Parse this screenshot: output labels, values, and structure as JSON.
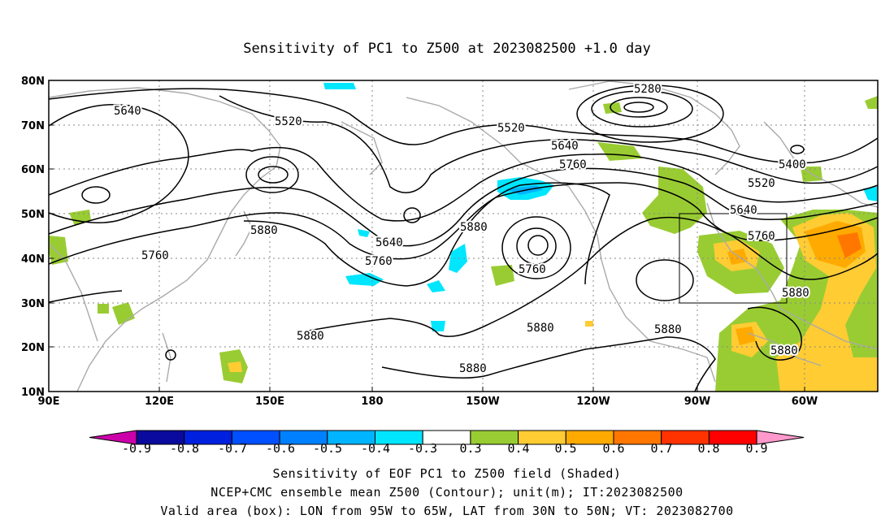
{
  "title": "Sensitivity of PC1 to Z500 at 2023082500 +1.0 day",
  "lat_labels": [
    "80N",
    "70N",
    "60N",
    "50N",
    "40N",
    "30N",
    "20N",
    "10N"
  ],
  "lon_labels": [
    "90E",
    "120E",
    "150E",
    "180",
    "150W",
    "120W",
    "90W",
    "60W"
  ],
  "contour_labels": [
    "5640",
    "5520",
    "5520",
    "5280",
    "5640",
    "5760",
    "5400",
    "5520",
    "5640",
    "5760",
    "5880",
    "5640",
    "5760",
    "5760",
    "5880",
    "5760",
    "5880",
    "5880",
    "5880",
    "5880",
    "5880"
  ],
  "colorbar_labels": [
    "-0.9",
    "-0.8",
    "-0.7",
    "-0.6",
    "-0.5",
    "-0.4",
    "-0.3",
    "0.3",
    "0.4",
    "0.5",
    "0.6",
    "0.7",
    "0.8",
    "0.9"
  ],
  "colors": {
    "neg_end": "#cc00aa",
    "neg": [
      "#0a0a9c",
      "#0020e0",
      "#0050ff",
      "#0080ff",
      "#00b4ff",
      "#00e6ff"
    ],
    "white": "#ffffff",
    "pos": [
      "#99cc33",
      "#ffcc33",
      "#ffaa00",
      "#ff7700",
      "#ff3300",
      "#ff0000"
    ],
    "pos_end": "#ff99cc",
    "coast": "#aaaaaa"
  },
  "captions": [
    "Sensitivity of EOF PC1 to Z500 field (Shaded)",
    "NCEP+CMC ensemble mean Z500 (Contour); unit(m); IT:2023082500",
    "Valid area (box): LON from 95W to 65W, LAT from 30N to 50N; VT: 2023082700"
  ]
}
